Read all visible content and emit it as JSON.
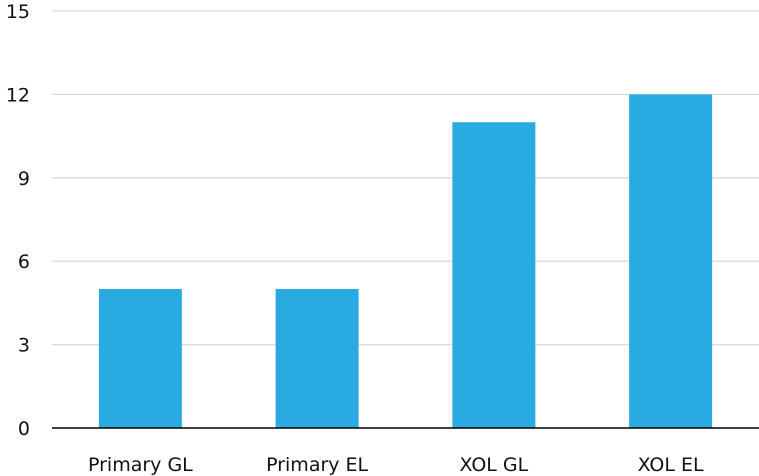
{
  "colors": {
    "bar": "#29abe2",
    "grid": "#d9d9d9",
    "axis": "#000000",
    "text": "#111111"
  },
  "chart_data": {
    "type": "bar",
    "categories": [
      "Primary GL",
      "Primary EL",
      "XOL GL",
      "XOL EL"
    ],
    "values": [
      5,
      5,
      11,
      12
    ],
    "ylim": [
      0,
      15
    ],
    "yticks": [
      0,
      3,
      6,
      9,
      12,
      15
    ],
    "grid": true,
    "legend": "none"
  }
}
